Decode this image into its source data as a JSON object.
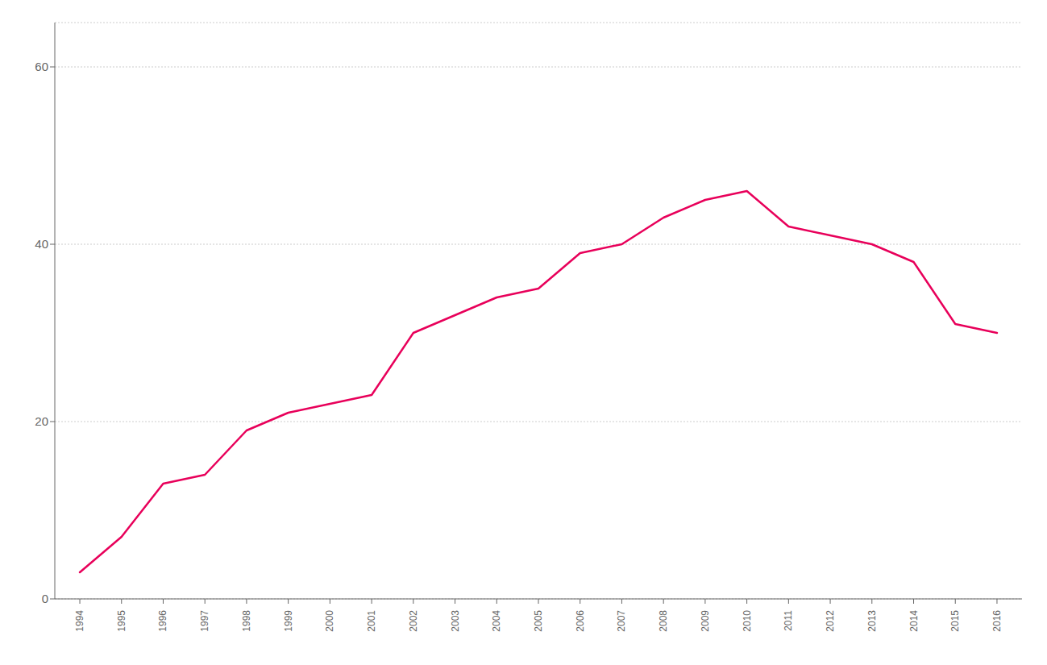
{
  "chart_data": {
    "type": "line",
    "x": [
      1994,
      1995,
      1996,
      1997,
      1998,
      1999,
      2000,
      2001,
      2002,
      2003,
      2004,
      2005,
      2006,
      2007,
      2008,
      2009,
      2010,
      2011,
      2012,
      2013,
      2014,
      2015,
      2016
    ],
    "values": [
      3,
      7,
      13,
      14,
      19,
      21,
      22,
      23,
      30,
      32,
      34,
      35,
      39,
      40,
      43,
      45,
      46,
      42,
      41,
      40,
      38,
      31,
      30
    ],
    "color": "#E8005A",
    "xlim": [
      1993.4,
      2016.6
    ],
    "xticks": [
      1994,
      1995,
      1996,
      1997,
      1998,
      1999,
      2000,
      2001,
      2002,
      2003,
      2004,
      2005,
      2006,
      2007,
      2008,
      2009,
      2010,
      2011,
      2012,
      2013,
      2014,
      2015,
      2016
    ],
    "ylim": [
      0,
      65
    ],
    "yticks": [
      0,
      20,
      40,
      60
    ],
    "grid": true
  }
}
